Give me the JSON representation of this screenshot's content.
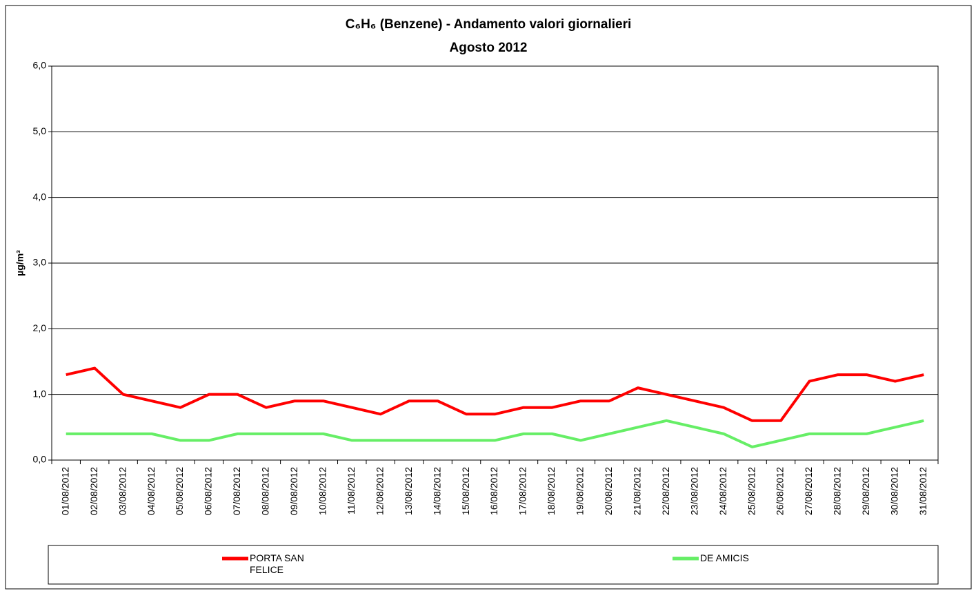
{
  "chart_data": {
    "type": "line",
    "title": "C₆H₆ (Benzene) - Andamento valori giornalieri",
    "subtitle": "Agosto 2012",
    "y_label": "µg/m³",
    "categories": [
      "01/08/2012",
      "02/08/2012",
      "03/08/2012",
      "04/08/2012",
      "05/08/2012",
      "06/08/2012",
      "07/08/2012",
      "08/08/2012",
      "09/08/2012",
      "10/08/2012",
      "11/08/2012",
      "12/08/2012",
      "13/08/2012",
      "14/08/2012",
      "15/08/2012",
      "16/08/2012",
      "17/08/2012",
      "18/08/2012",
      "19/08/2012",
      "20/08/2012",
      "21/08/2012",
      "22/08/2012",
      "23/08/2012",
      "24/08/2012",
      "25/08/2012",
      "26/08/2012",
      "27/08/2012",
      "28/08/2012",
      "29/08/2012",
      "30/08/2012",
      "31/08/2012"
    ],
    "series": [
      {
        "name": "PORTA SAN FELICE",
        "color": "#ff0000",
        "values": [
          1.3,
          1.4,
          1.0,
          0.9,
          0.8,
          1.0,
          1.0,
          0.8,
          0.9,
          0.9,
          0.8,
          0.7,
          0.9,
          0.9,
          0.7,
          0.7,
          0.8,
          0.8,
          0.9,
          0.9,
          1.1,
          1.0,
          0.9,
          0.8,
          0.6,
          0.6,
          1.2,
          1.3,
          1.3,
          1.2,
          1.3
        ]
      },
      {
        "name": "DE AMICIS",
        "color": "#66ee66",
        "values": [
          0.4,
          0.4,
          0.4,
          0.4,
          0.3,
          0.3,
          0.4,
          0.4,
          0.4,
          0.4,
          0.3,
          0.3,
          0.3,
          0.3,
          0.3,
          0.3,
          0.4,
          0.4,
          0.3,
          0.4,
          0.5,
          0.6,
          0.5,
          0.4,
          0.2,
          0.3,
          0.4,
          0.4,
          0.4,
          0.5,
          0.6
        ]
      }
    ],
    "ylim": [
      0,
      6
    ],
    "yticks": [
      {
        "value": 0,
        "label": "0,0"
      },
      {
        "value": 1,
        "label": "1,0"
      },
      {
        "value": 2,
        "label": "2,0"
      },
      {
        "value": 3,
        "label": "3,0"
      },
      {
        "value": 4,
        "label": "4,0"
      },
      {
        "value": 5,
        "label": "5,0"
      },
      {
        "value": 6,
        "label": "6,0"
      }
    ],
    "grid": true,
    "legend": "bottom"
  }
}
